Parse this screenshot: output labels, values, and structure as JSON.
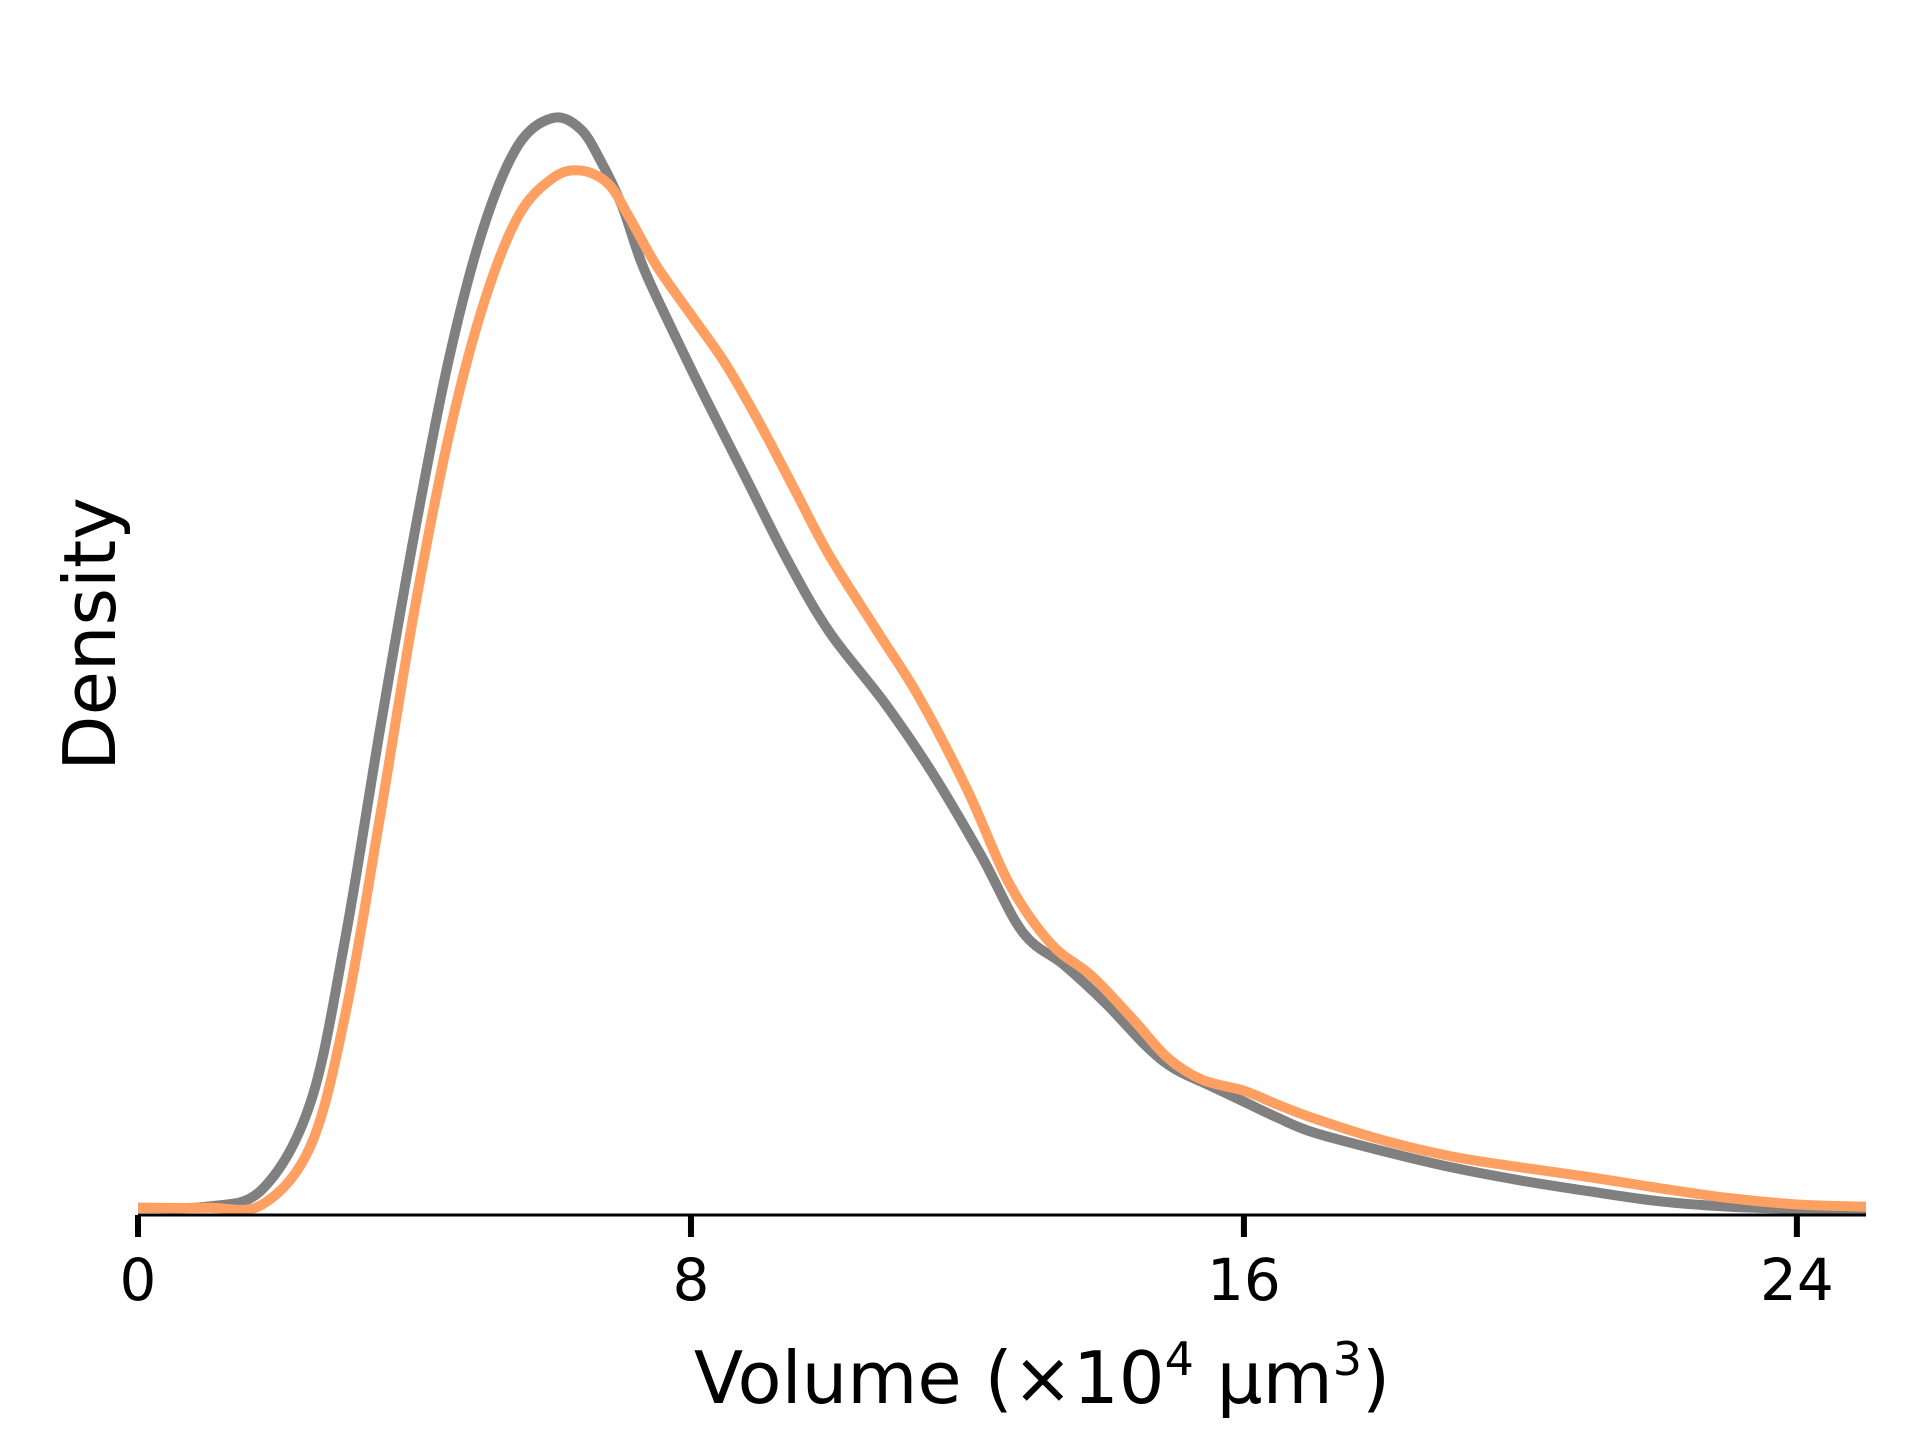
{
  "chart_data": {
    "type": "line",
    "chart_subtype": "kde_density",
    "title": "",
    "xlabel": {
      "prefix": "Volume (×10",
      "exp1": "4",
      "middle": " μm",
      "exp2": "3",
      "suffix": ")"
    },
    "ylabel": "Density",
    "xlim": [
      0,
      25
    ],
    "ylim": [
      0,
      1.0
    ],
    "xticks": [
      0,
      8,
      16,
      24
    ],
    "xtick_labels": [
      "0",
      "8",
      "16",
      "24"
    ],
    "y_ticks_shown": false,
    "grid": false,
    "legend": null,
    "series": [
      {
        "color": "#808080",
        "x": [
          0,
          1,
          1.8,
          2.5,
          3,
          3.5,
          4,
          4.5,
          5,
          5.5,
          6,
          6.4,
          6.7,
          7,
          7.3,
          7.7,
          8.2,
          8.8,
          9.4,
          10,
          10.8,
          11.5,
          12.2,
          12.8,
          13.4,
          14,
          14.6,
          15,
          15.5,
          16,
          16.5,
          17,
          18,
          19,
          20,
          21,
          22,
          23,
          24,
          25
        ],
        "y": [
          0.003,
          0.004,
          0.02,
          0.1,
          0.25,
          0.44,
          0.62,
          0.78,
          0.9,
          0.975,
          1.0,
          0.99,
          0.96,
          0.92,
          0.865,
          0.81,
          0.745,
          0.67,
          0.595,
          0.53,
          0.465,
          0.4,
          0.325,
          0.255,
          0.225,
          0.19,
          0.15,
          0.13,
          0.115,
          0.1,
          0.085,
          0.072,
          0.055,
          0.04,
          0.028,
          0.018,
          0.009,
          0.004,
          0.002,
          0.001
        ]
      },
      {
        "color": "#FFA062",
        "x": [
          0,
          1,
          1.8,
          2.5,
          3,
          3.5,
          4,
          4.5,
          5,
          5.5,
          6,
          6.4,
          6.8,
          7.1,
          7.5,
          8,
          8.5,
          9,
          9.5,
          10,
          10.7,
          11.3,
          12,
          12.6,
          13.2,
          13.8,
          14.4,
          14.9,
          15.4,
          16,
          16.5,
          17,
          18,
          19,
          20,
          21,
          22,
          23,
          24,
          25
        ],
        "y": [
          0.003,
          0.003,
          0.006,
          0.06,
          0.18,
          0.36,
          0.55,
          0.71,
          0.83,
          0.91,
          0.945,
          0.952,
          0.94,
          0.91,
          0.865,
          0.82,
          0.775,
          0.72,
          0.66,
          0.6,
          0.53,
          0.47,
          0.385,
          0.3,
          0.245,
          0.215,
          0.175,
          0.14,
          0.12,
          0.11,
          0.097,
          0.085,
          0.065,
          0.05,
          0.04,
          0.031,
          0.021,
          0.012,
          0.006,
          0.004
        ]
      }
    ]
  }
}
